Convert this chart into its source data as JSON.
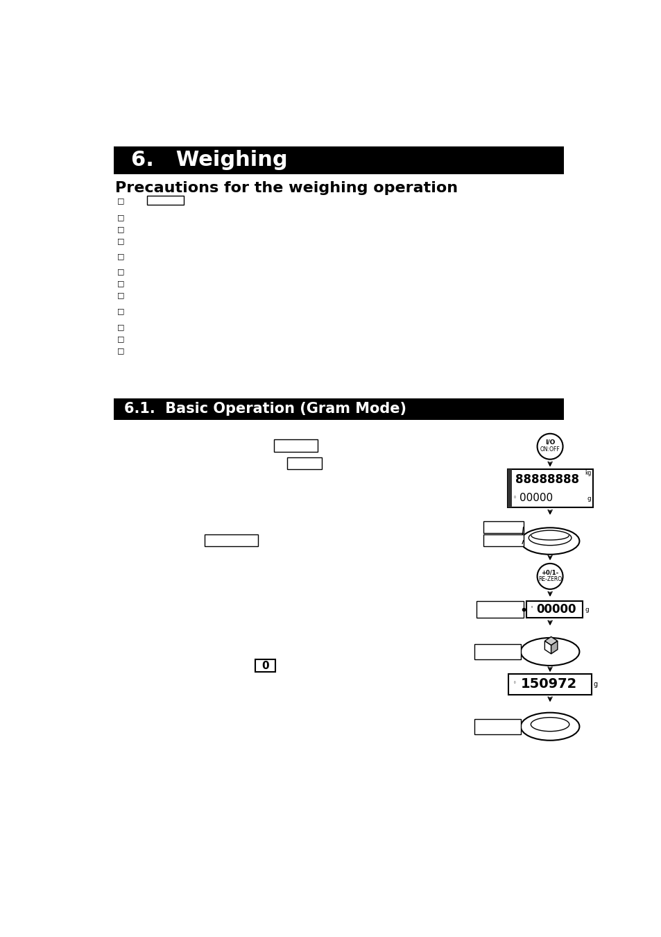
{
  "title1": "6.   Weighing",
  "title2": "Precautions for the weighing operation",
  "title3": "6.1.  Basic Operation (Gram Mode)",
  "bg_color": "#ffffff",
  "header_bg": "#000000",
  "header_text_color": "#ffffff",
  "body_text_color": "#000000",
  "bullet_char": "□",
  "io_symbol": "I/O",
  "on_off_label": "ON:OFF",
  "re_zero_label": "RE-ZERO",
  "re_zero_top": "+0/1-",
  "disp1_top_digits": "88888888",
  "disp1_bot_digits": "00000",
  "disp2_digits": "00000",
  "disp3_digits": "150972",
  "unit_g": "g",
  "unit_kg": "kg",
  "small_o_text": "0"
}
